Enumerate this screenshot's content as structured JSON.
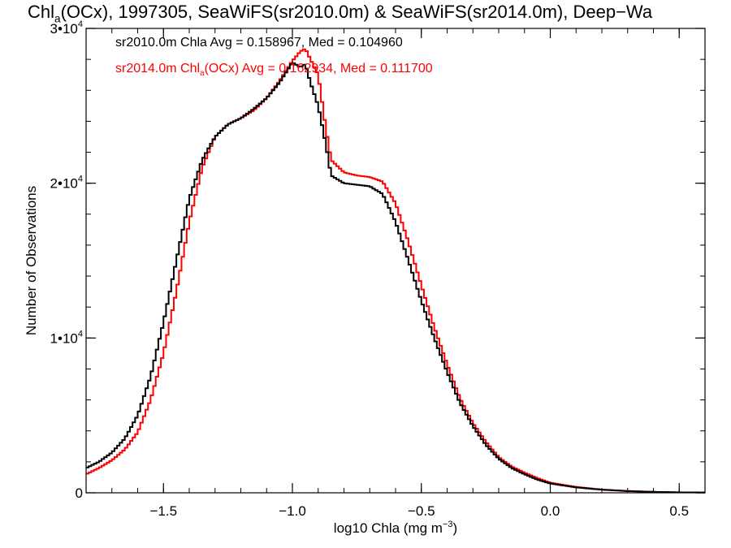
{
  "title": {
    "main": "Chl",
    "main_sub": "a",
    "rest": "(OCx), 1997305, SeaWiFS(sr2010.0m) & SeaWiFS(sr2014.0m), Deep−Wa"
  },
  "legend": {
    "line1": "sr2010.0m Chla Avg = 0.158967, Med = 0.104960",
    "line2_pre": "sr2014.0m Chl",
    "line2_sub": "a",
    "line2_post": "(OCx) Avg = 0.162934, Med = 0.111700"
  },
  "colors": {
    "series1": "#000000",
    "series2": "#ff0000",
    "axis": "#000000"
  },
  "chart_data": {
    "type": "line",
    "style": "histogram-step",
    "title": "Chla(OCx), 1997305, SeaWiFS(sr2010.0m) & SeaWiFS(sr2014.0m), Deep-Wa",
    "xlabel": "log10 Chla (mg m⁻³)",
    "ylabel": "Number of Observations",
    "xlim": [
      -1.8,
      0.6
    ],
    "ylim": [
      0,
      30000
    ],
    "x_ticks": [
      -1.5,
      -1.0,
      -0.5,
      0.0,
      0.5
    ],
    "x_tick_labels": [
      "−1.5",
      "−1.0",
      "−0.5",
      "0.0",
      "0.5"
    ],
    "y_ticks": [
      0,
      10000,
      20000,
      30000
    ],
    "y_tick_labels": [
      {
        "base": "0",
        "exp": ""
      },
      {
        "base": "1•10",
        "exp": "4"
      },
      {
        "base": "2•10",
        "exp": "4"
      },
      {
        "base": "3•10",
        "exp": "4"
      }
    ],
    "grid": false,
    "series": [
      {
        "name": "sr2010.0m",
        "x": [
          -1.8,
          -1.75,
          -1.7,
          -1.65,
          -1.6,
          -1.55,
          -1.5,
          -1.45,
          -1.4,
          -1.35,
          -1.3,
          -1.25,
          -1.2,
          -1.15,
          -1.1,
          -1.05,
          -1.0,
          -0.97,
          -0.95,
          -0.93,
          -0.9,
          -0.87,
          -0.85,
          -0.8,
          -0.75,
          -0.7,
          -0.65,
          -0.6,
          -0.55,
          -0.5,
          -0.45,
          -0.4,
          -0.35,
          -0.3,
          -0.25,
          -0.2,
          -0.15,
          -0.1,
          -0.05,
          0.0,
          0.1,
          0.2,
          0.3,
          0.4,
          0.5,
          0.6
        ],
        "y": [
          1600,
          2000,
          2600,
          3500,
          5000,
          7500,
          11000,
          15000,
          19000,
          21500,
          23000,
          23800,
          24200,
          24800,
          25500,
          26500,
          27800,
          27500,
          27700,
          26500,
          25000,
          22500,
          20500,
          20000,
          19900,
          19800,
          19300,
          17500,
          15000,
          12400,
          10000,
          7800,
          5800,
          4300,
          3100,
          2200,
          1600,
          1200,
          850,
          600,
          350,
          200,
          110,
          60,
          30,
          20
        ]
      },
      {
        "name": "sr2014.0m",
        "x": [
          -1.8,
          -1.75,
          -1.7,
          -1.65,
          -1.6,
          -1.55,
          -1.5,
          -1.45,
          -1.4,
          -1.35,
          -1.3,
          -1.25,
          -1.2,
          -1.15,
          -1.1,
          -1.05,
          -1.0,
          -0.97,
          -0.95,
          -0.93,
          -0.9,
          -0.87,
          -0.85,
          -0.8,
          -0.75,
          -0.7,
          -0.65,
          -0.6,
          -0.55,
          -0.5,
          -0.45,
          -0.4,
          -0.35,
          -0.3,
          -0.25,
          -0.2,
          -0.15,
          -0.1,
          -0.05,
          0.0,
          0.1,
          0.2,
          0.3,
          0.4,
          0.5,
          0.6
        ],
        "y": [
          1200,
          1600,
          2100,
          2800,
          3900,
          6000,
          9000,
          13000,
          17500,
          21000,
          23000,
          23800,
          24200,
          24700,
          25500,
          26600,
          27900,
          28500,
          28700,
          28000,
          27000,
          23500,
          21500,
          20700,
          20500,
          20400,
          20100,
          18700,
          16200,
          13400,
          10700,
          8300,
          6100,
          4500,
          3300,
          2300,
          1700,
          1300,
          950,
          650,
          380,
          210,
          120,
          60,
          30,
          20
        ]
      }
    ]
  }
}
